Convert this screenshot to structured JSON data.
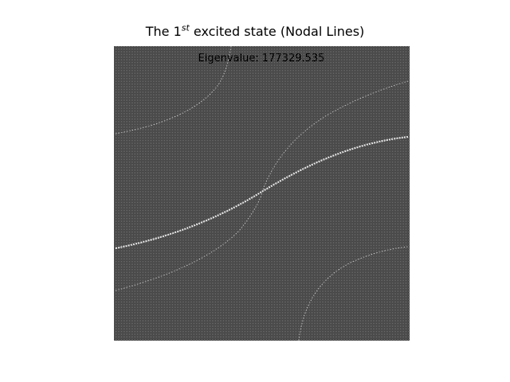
{
  "chart_data": {
    "type": "heatmap",
    "title_parts": {
      "prefix": "The 1",
      "superscript": "st",
      "suffix": " excited state (Nodal Lines)"
    },
    "annotation": "Eigenvalue: 177329.535",
    "eigenvalue": 177329.535,
    "state_index": 1,
    "colormap": "gray",
    "background_color": "#3a3a3a",
    "grid_color": "#e8e8e8",
    "axes_visible": false,
    "grid": false
  }
}
